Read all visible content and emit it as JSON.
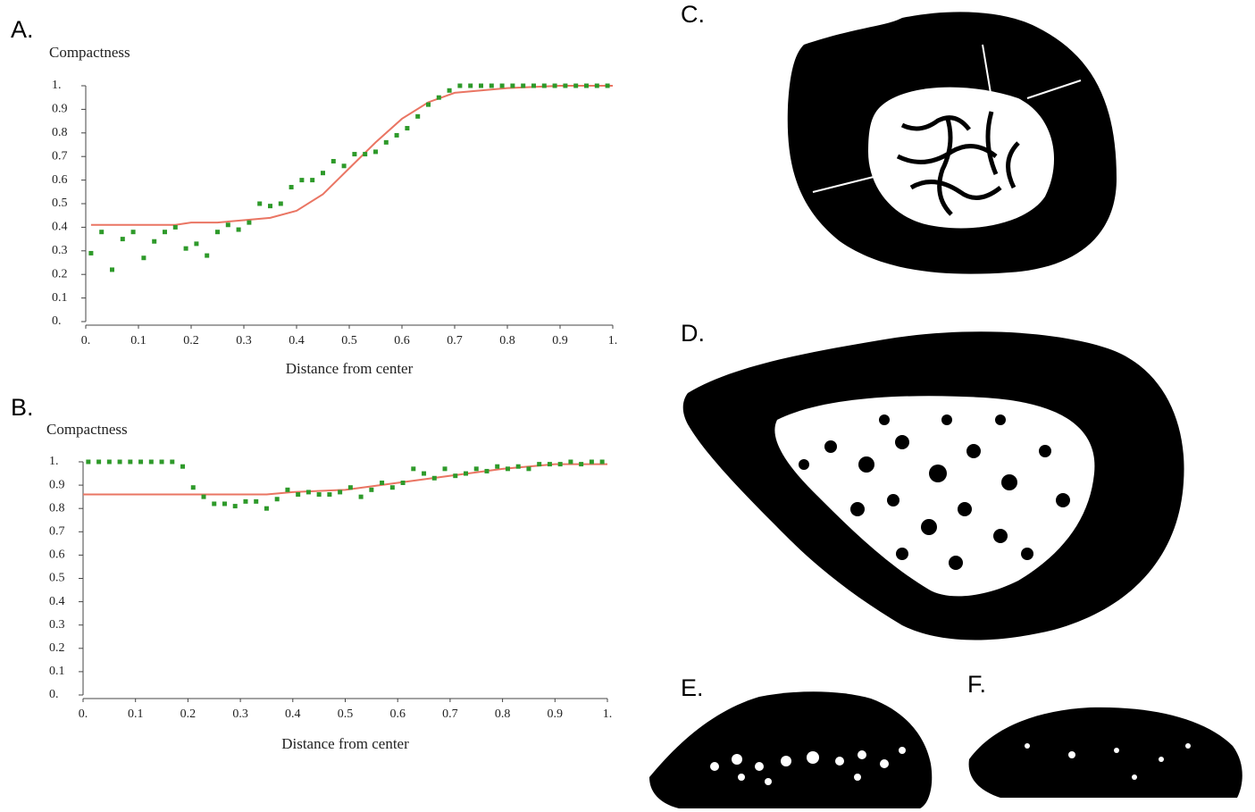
{
  "chart_data": [
    {
      "type": "scatter",
      "label": "A.",
      "ylabel": "Compactness",
      "xlabel": "Distance from center",
      "xlim": [
        0,
        1
      ],
      "ylim": [
        0,
        1
      ],
      "xticks": [
        {
          "value": 0,
          "label": "0."
        },
        0.1,
        0.2,
        0.3,
        0.4,
        0.5,
        0.6,
        0.7,
        0.8,
        0.9,
        {
          "value": 1,
          "label": "1."
        }
      ],
      "yticks": [
        {
          "value": 0,
          "label": "0."
        },
        0.1,
        0.2,
        0.3,
        0.4,
        0.5,
        0.6,
        0.7,
        0.8,
        0.9,
        {
          "value": 1,
          "label": "1."
        }
      ],
      "series": [
        {
          "style": "line",
          "color": "#ea7563",
          "x": [
            0.01,
            0.1,
            0.17,
            0.2,
            0.25,
            0.3,
            0.35,
            0.4,
            0.45,
            0.5,
            0.55,
            0.6,
            0.65,
            0.7,
            0.75,
            0.8,
            0.9,
            1
          ],
          "values": [
            0.41,
            0.41,
            0.41,
            0.42,
            0.42,
            0.43,
            0.44,
            0.47,
            0.54,
            0.65,
            0.76,
            0.86,
            0.93,
            0.97,
            0.98,
            0.99,
            1,
            1
          ]
        },
        {
          "style": "dots",
          "color": "#2e9a2a",
          "x": [
            0.01,
            0.03,
            0.05,
            0.07,
            0.09,
            0.11,
            0.13,
            0.15,
            0.17,
            0.19,
            0.21,
            0.23,
            0.25,
            0.27,
            0.29,
            0.31,
            0.33,
            0.35,
            0.37,
            0.39,
            0.41,
            0.43,
            0.45,
            0.47,
            0.49,
            0.51,
            0.53,
            0.55,
            0.57,
            0.59,
            0.61,
            0.63,
            0.65,
            0.67,
            0.69,
            0.71,
            0.73,
            0.75,
            0.77,
            0.79,
            0.81,
            0.83,
            0.85,
            0.87,
            0.89,
            0.91,
            0.93,
            0.95,
            0.97,
            0.99
          ],
          "values": [
            0.29,
            0.38,
            0.22,
            0.35,
            0.38,
            0.27,
            0.34,
            0.38,
            0.4,
            0.31,
            0.33,
            0.28,
            0.38,
            0.41,
            0.39,
            0.42,
            0.5,
            0.49,
            0.5,
            0.57,
            0.6,
            0.6,
            0.63,
            0.68,
            0.66,
            0.71,
            0.71,
            0.72,
            0.76,
            0.79,
            0.82,
            0.87,
            0.92,
            0.95,
            0.98,
            1,
            1,
            1,
            1,
            1,
            1,
            1,
            1,
            1,
            1,
            1,
            1,
            1,
            1,
            1
          ]
        }
      ]
    },
    {
      "type": "scatter",
      "label": "B.",
      "ylabel": "Compactness",
      "xlabel": "Distance from center",
      "xlim": [
        0,
        1
      ],
      "ylim": [
        0,
        1
      ],
      "xticks": [
        {
          "value": 0,
          "label": "0."
        },
        0.1,
        0.2,
        0.3,
        0.4,
        0.5,
        0.6,
        0.7,
        0.8,
        0.9,
        {
          "value": 1,
          "label": "1."
        }
      ],
      "yticks": [
        {
          "value": 0,
          "label": "0."
        },
        0.1,
        0.2,
        0.3,
        0.4,
        0.5,
        0.6,
        0.7,
        0.8,
        0.9,
        {
          "value": 1,
          "label": "1."
        }
      ],
      "series": [
        {
          "style": "line",
          "color": "#ea7563",
          "x": [
            0,
            0.35,
            0.4,
            0.5,
            0.6,
            0.7,
            0.8,
            0.9,
            1
          ],
          "values": [
            0.86,
            0.86,
            0.87,
            0.88,
            0.91,
            0.94,
            0.97,
            0.99,
            0.99
          ]
        },
        {
          "style": "dots",
          "color": "#2e9a2a",
          "x": [
            0.01,
            0.03,
            0.05,
            0.07,
            0.09,
            0.11,
            0.13,
            0.15,
            0.17,
            0.19,
            0.21,
            0.23,
            0.25,
            0.27,
            0.29,
            0.31,
            0.33,
            0.35,
            0.37,
            0.39,
            0.41,
            0.43,
            0.45,
            0.47,
            0.49,
            0.51,
            0.53,
            0.55,
            0.57,
            0.59,
            0.61,
            0.63,
            0.65,
            0.67,
            0.69,
            0.71,
            0.73,
            0.75,
            0.77,
            0.79,
            0.81,
            0.83,
            0.85,
            0.87,
            0.89,
            0.91,
            0.93,
            0.95,
            0.97,
            0.99
          ],
          "values": [
            1,
            1,
            1,
            1,
            1,
            1,
            1,
            1,
            1,
            0.98,
            0.89,
            0.85,
            0.82,
            0.82,
            0.81,
            0.83,
            0.83,
            0.8,
            0.84,
            0.88,
            0.86,
            0.87,
            0.86,
            0.86,
            0.87,
            0.89,
            0.85,
            0.88,
            0.91,
            0.89,
            0.91,
            0.97,
            0.95,
            0.93,
            0.97,
            0.94,
            0.95,
            0.97,
            0.96,
            0.98,
            0.97,
            0.98,
            0.97,
            0.99,
            0.99,
            0.99,
            1,
            0.99,
            1,
            1
          ]
        }
      ]
    }
  ],
  "panels": [
    {
      "label": "C."
    },
    {
      "label": "D."
    },
    {
      "label": "E."
    },
    {
      "label": "F."
    }
  ]
}
